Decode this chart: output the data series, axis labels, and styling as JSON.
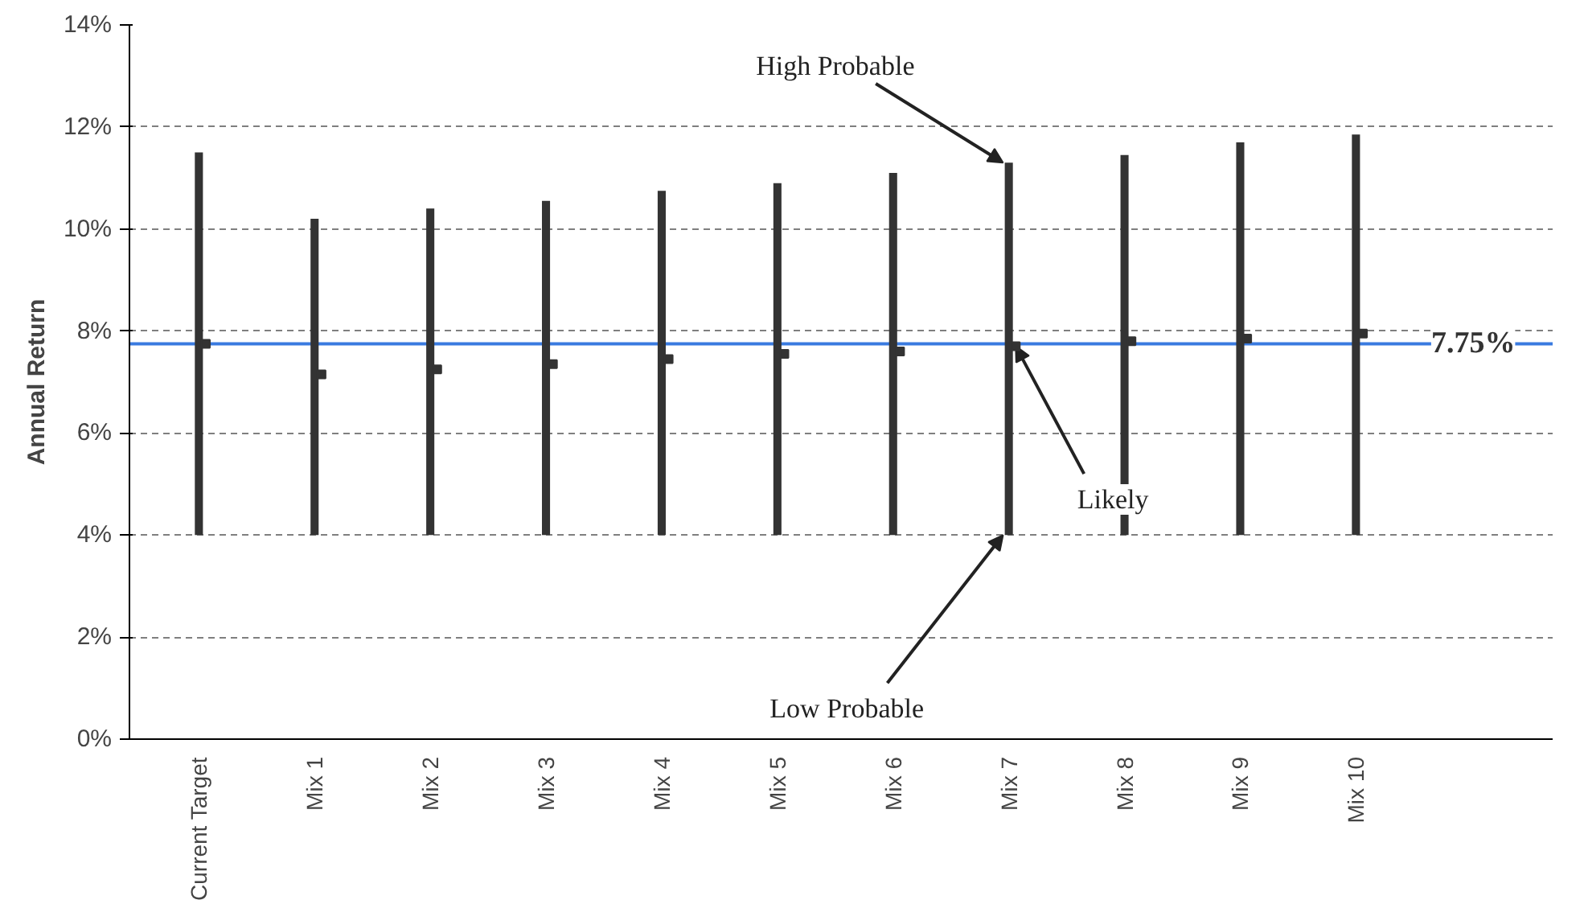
{
  "chart_data": {
    "type": "bar",
    "ylabel": "Annual Return",
    "categories": [
      "Current Target",
      "Mix 1",
      "Mix 2",
      "Mix 3",
      "Mix 4",
      "Mix 5",
      "Mix 6",
      "Mix 7",
      "Mix 8",
      "Mix 9",
      "Mix 10"
    ],
    "series": [
      {
        "color": "#333333",
        "base": [
          4,
          4,
          4,
          4,
          4,
          4,
          4,
          4,
          4,
          4,
          4
        ],
        "values": [
          7.5,
          6.2,
          6.4,
          6.55,
          6.75,
          6.9,
          7.1,
          7.3,
          7.45,
          7.7,
          7.85
        ]
      },
      {
        "type": "scatter",
        "color": "#333333",
        "marker": "square",
        "values": [
          7.75,
          7.15,
          7.25,
          7.35,
          7.45,
          7.55,
          7.6,
          7.7,
          7.8,
          7.85,
          7.95
        ]
      }
    ],
    "ylim": [
      0,
      14
    ],
    "yticks": [
      {
        "value": 0,
        "label": "0%"
      },
      {
        "value": 2,
        "label": "2%"
      },
      {
        "value": 4,
        "label": "4%"
      },
      {
        "value": 6,
        "label": "6%"
      },
      {
        "value": 8,
        "label": "8%"
      },
      {
        "value": 10,
        "label": "10%"
      },
      {
        "value": 12,
        "label": "12%"
      },
      {
        "value": 14,
        "label": "14%"
      }
    ],
    "grid": "y",
    "ref_lines": [
      {
        "axis": "y",
        "value": 7.75,
        "label": "7.75%",
        "color": "#3a7be0"
      }
    ],
    "annotations": [
      {
        "text": "High Probable",
        "x": "Mix 7",
        "y": 11.3
      },
      {
        "text": "Likely",
        "x": "Mix 7",
        "y": 7.7
      },
      {
        "text": "Low Probable",
        "x": "Mix 7",
        "y": 4
      }
    ]
  }
}
